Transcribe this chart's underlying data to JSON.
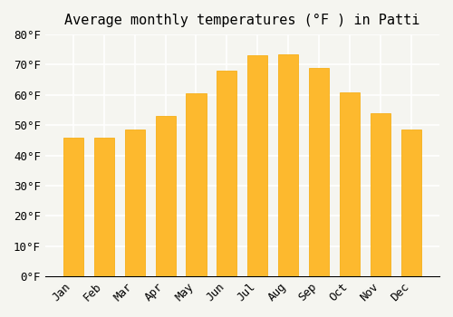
{
  "title": "Average monthly temperatures (°F ) in Patti",
  "months": [
    "Jan",
    "Feb",
    "Mar",
    "Apr",
    "May",
    "Jun",
    "Jul",
    "Aug",
    "Sep",
    "Oct",
    "Nov",
    "Dec"
  ],
  "values": [
    46,
    46,
    48.5,
    53,
    60.5,
    68,
    73,
    73.5,
    69,
    61,
    54,
    48.5
  ],
  "bar_color_main": "#FDB92E",
  "bar_color_edge": "#F5A800",
  "ylim": [
    0,
    80
  ],
  "yticks": [
    0,
    10,
    20,
    30,
    40,
    50,
    60,
    70,
    80
  ],
  "background_color": "#F5F5F0",
  "grid_color": "#FFFFFF",
  "title_fontsize": 11,
  "tick_fontsize": 9
}
